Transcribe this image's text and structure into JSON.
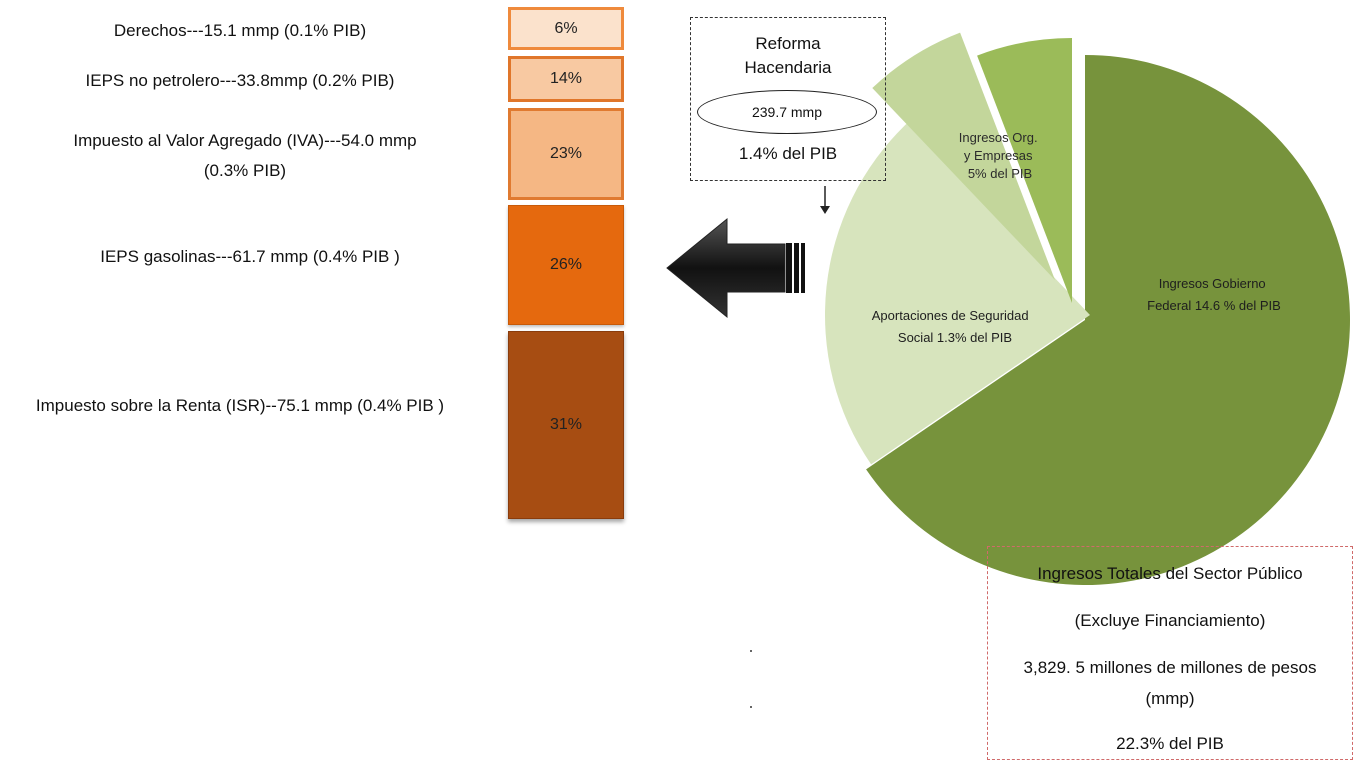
{
  "left_labels": [
    "Derechos---15.1 mmp (0.1% PIB)",
    "IEPS no petrolero---33.8mmp  (0.2% PIB)",
    "Impuesto al Valor Agregado (IVA)---54.0 mmp",
    "(0.3% PIB)",
    "IEPS gasolinas---61.7 mmp (0.4% PIB )",
    "Impuesto sobre la Renta (ISR)--75.1 mmp (0.4% PIB )"
  ],
  "reform": {
    "title_line1": "Reforma",
    "title_line2": "Hacendaria",
    "amount": "239.7 mmp",
    "pib": "1.4% del PIB"
  },
  "totals": {
    "line1": "Ingresos Totales del Sector Público",
    "line2": "(Excluye Financiamiento)",
    "line3": "3,829. 5 millones de millones de pesos",
    "line4": "(mmp)",
    "line5": "22.3% del PIB"
  },
  "chart_data": [
    {
      "type": "bar",
      "stacked": true,
      "categories": [
        "Derechos",
        "IEPS no petrolero",
        "Impuesto al Valor Agregado (IVA)",
        "IEPS gasolinas",
        "Impuesto sobre la Renta (ISR)"
      ],
      "values": [
        6,
        14,
        23,
        26,
        31
      ],
      "labels": [
        "6%",
        "14%",
        "23%",
        "26%",
        "31%"
      ],
      "colors": [
        "#fbe2cc",
        "#f8c9a2",
        "#f5b784",
        "#e5690e",
        "#a74d12"
      ]
    },
    {
      "type": "pie",
      "slices": [
        {
          "label_lines": [
            "Ingresos Gobierno",
            "Federal 14.6 % del PIB"
          ],
          "value": 14.6,
          "color": "#77933c"
        },
        {
          "label_lines": [
            "Ingresos  Org.",
            "y Empresas",
            "5% del PIB"
          ],
          "value": 5.0,
          "color": "#d7e4bd"
        },
        {
          "label_lines": [
            "Reforma Hacendaria"
          ],
          "value": 1.4,
          "color": "#c3d69b"
        },
        {
          "label_lines": [
            "Aportaciones de Seguridad",
            "Social 1.3% del PIB"
          ],
          "value": 1.3,
          "color": "#9bbb59"
        }
      ]
    }
  ]
}
